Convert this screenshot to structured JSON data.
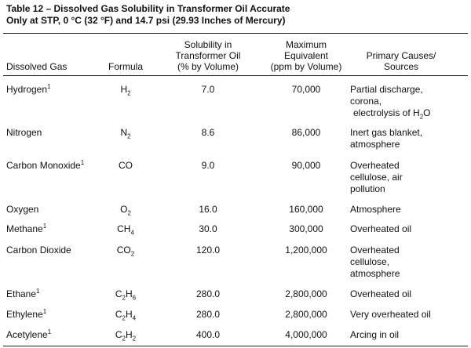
{
  "title": [
    "Table 12 – Dissolved Gas Solubility in Transformer Oil Accurate",
    "Only at STP, 0 °C (32 °F) and 14.7 psi (29.93 Inches of Mercury)"
  ],
  "table": {
    "headers": [
      [
        "Dissolved Gas"
      ],
      [
        "Formula"
      ],
      [
        "Solubility in",
        "Transformer Oil",
        "(% by Volume)"
      ],
      [
        "Maximum",
        "Equivalent",
        "(ppm by Volume)"
      ],
      [
        "Primary Causes/",
        "Sources"
      ]
    ],
    "rows": [
      {
        "gas": [
          {
            "text": "Hydrogen"
          },
          {
            "sup": "1"
          }
        ],
        "formula": [
          {
            "text": "H"
          },
          {
            "sub": "2"
          }
        ],
        "solubility": "7.0",
        "maximum": "70,000",
        "causes": [
          "Partial discharge,",
          "corona,",
          [
            {
              "text": "electrolysis of H"
            },
            {
              "sub": "2"
            },
            {
              "text": "O"
            }
          ]
        ]
      },
      {
        "gas": "Nitrogen",
        "formula": [
          {
            "text": "N"
          },
          {
            "sub": "2"
          }
        ],
        "solubility": "8.6",
        "maximum": "86,000",
        "causes": [
          "Inert gas blanket,",
          "atmosphere"
        ]
      },
      {
        "gas": [
          {
            "text": "Carbon Monoxide"
          },
          {
            "sup": "1"
          }
        ],
        "formula": "CO",
        "solubility": "9.0",
        "maximum": "90,000",
        "causes": [
          "Overheated",
          "cellulose, air",
          "pollution"
        ]
      },
      {
        "gas": "Oxygen",
        "formula": [
          {
            "text": "O"
          },
          {
            "sub": "2"
          }
        ],
        "solubility": "16.0",
        "maximum": "160,000",
        "causes": [
          "Atmosphere"
        ]
      },
      {
        "gas": [
          {
            "text": "Methane"
          },
          {
            "sup": "1"
          }
        ],
        "formula": [
          {
            "text": "CH"
          },
          {
            "sub": "4"
          }
        ],
        "solubility": "30.0",
        "maximum": "300,000",
        "causes": [
          "Overheated oil"
        ]
      },
      {
        "gas": "Carbon Dioxide",
        "formula": [
          {
            "text": "CO"
          },
          {
            "sub": "2"
          }
        ],
        "solubility": "120.0",
        "maximum": "1,200,000",
        "causes": [
          "Overheated",
          "cellulose,",
          "atmosphere"
        ]
      },
      {
        "gas": [
          {
            "text": "Ethane"
          },
          {
            "sup": "1"
          }
        ],
        "formula": [
          {
            "text": "C"
          },
          {
            "sub": "2"
          },
          {
            "text": "H"
          },
          {
            "sub": "6"
          }
        ],
        "solubility": "280.0",
        "maximum": "2,800,000",
        "causes": [
          "Overheated oil"
        ]
      },
      {
        "gas": [
          {
            "text": "Ethylene"
          },
          {
            "sup": "1"
          }
        ],
        "formula": [
          {
            "text": "C"
          },
          {
            "sub": "2"
          },
          {
            "text": "H"
          },
          {
            "sub": "4"
          }
        ],
        "solubility": "280.0",
        "maximum": "2,800,000",
        "causes": [
          "Very overheated oil"
        ]
      },
      {
        "gas": [
          {
            "text": "Acetylene"
          },
          {
            "sup": "1"
          }
        ],
        "formula": [
          {
            "text": "C"
          },
          {
            "sub": "2"
          },
          {
            "text": "H"
          },
          {
            "sub": "2"
          }
        ],
        "solubility": "400.0",
        "maximum": "4,000,000",
        "causes": [
          "Arcing in oil"
        ]
      }
    ]
  }
}
